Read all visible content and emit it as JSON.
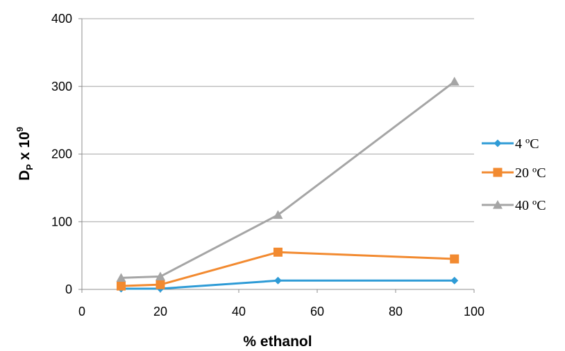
{
  "chart_data": {
    "type": "line",
    "title": "",
    "xlabel": "% ethanol",
    "ylabel_main": "D",
    "ylabel_sub": "P",
    "ylabel_rest": " x 10",
    "ylabel_sup": "9",
    "xlim": [
      0,
      100
    ],
    "ylim": [
      0,
      400
    ],
    "xticks": [
      0,
      20,
      40,
      60,
      80,
      100
    ],
    "yticks": [
      0,
      100,
      200,
      300,
      400
    ],
    "grid": "horizontal",
    "legend_position": "right",
    "series": [
      {
        "name": "4 ºC",
        "color": "#2E9BD6",
        "marker": "diamond",
        "x": [
          10,
          20,
          50,
          95
        ],
        "y": [
          1,
          1,
          13,
          13
        ]
      },
      {
        "name": "20 ºC",
        "color": "#F28A30",
        "marker": "square",
        "x": [
          10,
          20,
          50,
          95
        ],
        "y": [
          5,
          7,
          55,
          45
        ]
      },
      {
        "name": "40 ºC",
        "color": "#A5A5A5",
        "marker": "triangle",
        "x": [
          10,
          20,
          50,
          95
        ],
        "y": [
          17,
          19,
          110,
          307
        ]
      }
    ]
  }
}
